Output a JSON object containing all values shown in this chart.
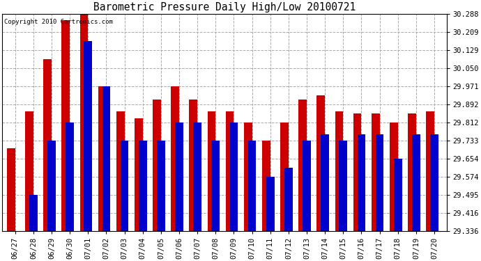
{
  "title": "Barometric Pressure Daily High/Low 20100721",
  "copyright": "Copyright 2010 Cartronics.com",
  "dates": [
    "06/27",
    "06/28",
    "06/29",
    "06/30",
    "07/01",
    "07/02",
    "07/03",
    "07/04",
    "07/05",
    "07/06",
    "07/07",
    "07/08",
    "07/09",
    "07/10",
    "07/11",
    "07/12",
    "07/13",
    "07/14",
    "07/15",
    "07/16",
    "07/17",
    "07/18",
    "07/19",
    "07/20"
  ],
  "highs": [
    29.7,
    29.862,
    30.09,
    30.26,
    30.288,
    29.971,
    29.862,
    29.83,
    29.912,
    29.971,
    29.912,
    29.862,
    29.862,
    29.812,
    29.733,
    29.812,
    29.912,
    29.933,
    29.862,
    29.852,
    29.852,
    29.812,
    29.852,
    29.862
  ],
  "lows": [
    29.336,
    29.495,
    29.733,
    29.812,
    30.17,
    29.971,
    29.733,
    29.733,
    29.733,
    29.812,
    29.812,
    29.733,
    29.812,
    29.733,
    29.574,
    29.615,
    29.733,
    29.762,
    29.733,
    29.762,
    29.762,
    29.654,
    29.762,
    29.762
  ],
  "high_color": "#cc0000",
  "low_color": "#0000cc",
  "background_color": "#ffffff",
  "plot_bg_color": "#ffffff",
  "grid_color": "#aaaaaa",
  "ymin": 29.336,
  "ymax": 30.288,
  "yticks": [
    29.336,
    29.416,
    29.495,
    29.574,
    29.654,
    29.733,
    29.812,
    29.892,
    29.971,
    30.05,
    30.129,
    30.209,
    30.288
  ]
}
